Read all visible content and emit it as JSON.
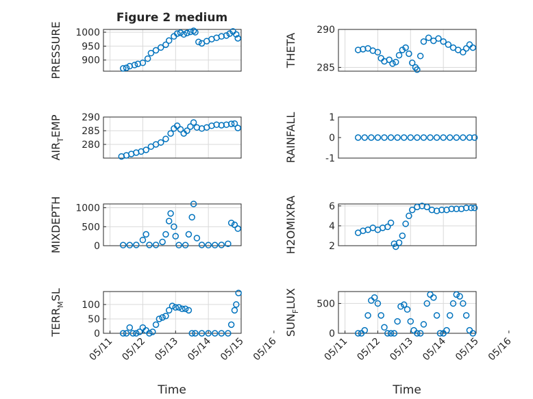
{
  "figure": {
    "title": "Figure 2 medium",
    "xlabel": "Time"
  },
  "colors": {
    "marker": "#0072BD",
    "grid": "#d9d9d9",
    "axes": "#262626"
  },
  "chart_data": [
    {
      "type": "scatter",
      "ylabel": "PRESSURE",
      "title": "Figure 2 medium",
      "ylim": [
        860,
        1010
      ],
      "yticks": [
        900,
        950,
        1000
      ],
      "grid": true,
      "x_range": [
        "05/11",
        "05/16"
      ],
      "xticks": [],
      "points": [
        [
          1.4,
          870
        ],
        [
          1.5,
          872
        ],
        [
          1.6,
          878
        ],
        [
          1.75,
          882
        ],
        [
          1.85,
          886
        ],
        [
          2.0,
          890
        ],
        [
          2.15,
          905
        ],
        [
          2.25,
          925
        ],
        [
          2.4,
          935
        ],
        [
          2.55,
          945
        ],
        [
          2.7,
          955
        ],
        [
          2.8,
          970
        ],
        [
          2.95,
          985
        ],
        [
          3.05,
          995
        ],
        [
          3.15,
          998
        ],
        [
          3.25,
          992
        ],
        [
          3.35,
          997
        ],
        [
          3.45,
          1001
        ],
        [
          3.55,
          1005
        ],
        [
          3.6,
          1000
        ],
        [
          3.7,
          965
        ],
        [
          3.8,
          960
        ],
        [
          3.95,
          968
        ],
        [
          4.1,
          975
        ],
        [
          4.25,
          980
        ],
        [
          4.4,
          985
        ],
        [
          4.55,
          988
        ],
        [
          4.65,
          995
        ],
        [
          4.75,
          1003
        ],
        [
          4.85,
          992
        ],
        [
          4.9,
          978
        ]
      ]
    },
    {
      "type": "scatter",
      "ylabel": "THETA",
      "ylim": [
        284.5,
        290
      ],
      "yticks": [
        285,
        290
      ],
      "grid": true,
      "x_range": [
        "05/11",
        "05/16"
      ],
      "xticks": [],
      "points": [
        [
          1.4,
          287.3
        ],
        [
          1.55,
          287.4
        ],
        [
          1.7,
          287.5
        ],
        [
          1.85,
          287.2
        ],
        [
          2.0,
          287.0
        ],
        [
          2.1,
          286.2
        ],
        [
          2.2,
          285.8
        ],
        [
          2.35,
          286.0
        ],
        [
          2.45,
          285.5
        ],
        [
          2.55,
          285.7
        ],
        [
          2.65,
          286.6
        ],
        [
          2.75,
          287.3
        ],
        [
          2.85,
          287.6
        ],
        [
          2.95,
          286.8
        ],
        [
          3.05,
          285.6
        ],
        [
          3.15,
          285.0
        ],
        [
          3.2,
          284.7
        ],
        [
          3.3,
          286.5
        ],
        [
          3.4,
          288.4
        ],
        [
          3.55,
          288.9
        ],
        [
          3.7,
          288.5
        ],
        [
          3.85,
          288.8
        ],
        [
          4.0,
          288.4
        ],
        [
          4.15,
          288.0
        ],
        [
          4.3,
          287.6
        ],
        [
          4.45,
          287.3
        ],
        [
          4.6,
          287.0
        ],
        [
          4.7,
          287.5
        ],
        [
          4.8,
          288.0
        ],
        [
          4.9,
          287.6
        ]
      ]
    },
    {
      "type": "scatter",
      "ylabel": "AIR_TEMP",
      "ylim": [
        275,
        290
      ],
      "yticks": [
        280,
        285,
        290
      ],
      "grid": true,
      "x_range": [
        "05/11",
        "05/16"
      ],
      "xticks": [],
      "points": [
        [
          1.35,
          275.6
        ],
        [
          1.5,
          276.0
        ],
        [
          1.65,
          276.5
        ],
        [
          1.8,
          277.0
        ],
        [
          1.95,
          277.4
        ],
        [
          2.1,
          278.0
        ],
        [
          2.25,
          279.2
        ],
        [
          2.4,
          280.0
        ],
        [
          2.55,
          280.7
        ],
        [
          2.7,
          282.0
        ],
        [
          2.85,
          284.0
        ],
        [
          2.95,
          285.8
        ],
        [
          3.05,
          286.8
        ],
        [
          3.15,
          285.5
        ],
        [
          3.25,
          284.0
        ],
        [
          3.35,
          285.0
        ],
        [
          3.45,
          286.5
        ],
        [
          3.55,
          288.0
        ],
        [
          3.65,
          286.2
        ],
        [
          3.8,
          285.8
        ],
        [
          3.95,
          286.2
        ],
        [
          4.1,
          286.8
        ],
        [
          4.25,
          287.2
        ],
        [
          4.4,
          287.0
        ],
        [
          4.55,
          287.2
        ],
        [
          4.7,
          287.5
        ],
        [
          4.8,
          287.6
        ],
        [
          4.9,
          286.0
        ]
      ]
    },
    {
      "type": "scatter",
      "ylabel": "RAINFALL",
      "ylim": [
        -1,
        1
      ],
      "yticks": [
        -1,
        0,
        1
      ],
      "grid": false,
      "x_range": [
        "05/11",
        "05/16"
      ],
      "xticks": [],
      "points": [
        [
          1.4,
          0
        ],
        [
          1.6,
          0
        ],
        [
          1.8,
          0
        ],
        [
          2.0,
          0
        ],
        [
          2.2,
          0
        ],
        [
          2.4,
          0
        ],
        [
          2.6,
          0
        ],
        [
          2.8,
          0
        ],
        [
          3.0,
          0
        ],
        [
          3.2,
          0
        ],
        [
          3.4,
          0
        ],
        [
          3.6,
          0
        ],
        [
          3.8,
          0
        ],
        [
          4.0,
          0
        ],
        [
          4.2,
          0
        ],
        [
          4.4,
          0
        ],
        [
          4.6,
          0
        ],
        [
          4.8,
          0
        ],
        [
          4.95,
          0
        ]
      ]
    },
    {
      "type": "scatter",
      "ylabel": "MIXDEPTH",
      "ylim": [
        0,
        1100
      ],
      "yticks": [
        0,
        500,
        1000
      ],
      "grid": true,
      "x_range": [
        "05/11",
        "05/16"
      ],
      "xticks": [],
      "points": [
        [
          1.4,
          15
        ],
        [
          1.6,
          15
        ],
        [
          1.8,
          20
        ],
        [
          2.0,
          150
        ],
        [
          2.1,
          300
        ],
        [
          2.2,
          20
        ],
        [
          2.4,
          20
        ],
        [
          2.6,
          100
        ],
        [
          2.7,
          300
        ],
        [
          2.8,
          650
        ],
        [
          2.85,
          850
        ],
        [
          2.95,
          500
        ],
        [
          3.0,
          250
        ],
        [
          3.1,
          15
        ],
        [
          3.3,
          15
        ],
        [
          3.4,
          300
        ],
        [
          3.5,
          750
        ],
        [
          3.55,
          1100
        ],
        [
          3.65,
          200
        ],
        [
          3.8,
          20
        ],
        [
          4.0,
          15
        ],
        [
          4.2,
          15
        ],
        [
          4.4,
          20
        ],
        [
          4.6,
          50
        ],
        [
          4.7,
          600
        ],
        [
          4.8,
          550
        ],
        [
          4.9,
          450
        ]
      ]
    },
    {
      "type": "scatter",
      "ylabel": "H2OMIXRA",
      "ylim": [
        2,
        6.2
      ],
      "yticks": [
        2,
        4,
        6
      ],
      "grid": true,
      "x_range": [
        "05/11",
        "05/16"
      ],
      "xticks": [],
      "points": [
        [
          1.4,
          3.3
        ],
        [
          1.55,
          3.5
        ],
        [
          1.7,
          3.6
        ],
        [
          1.85,
          3.8
        ],
        [
          2.0,
          3.6
        ],
        [
          2.15,
          3.8
        ],
        [
          2.3,
          3.9
        ],
        [
          2.4,
          4.3
        ],
        [
          2.5,
          2.2
        ],
        [
          2.55,
          1.9
        ],
        [
          2.65,
          2.3
        ],
        [
          2.75,
          3.0
        ],
        [
          2.85,
          4.2
        ],
        [
          2.95,
          5.0
        ],
        [
          3.05,
          5.6
        ],
        [
          3.2,
          5.9
        ],
        [
          3.35,
          6.0
        ],
        [
          3.5,
          5.9
        ],
        [
          3.65,
          5.6
        ],
        [
          3.8,
          5.5
        ],
        [
          3.95,
          5.6
        ],
        [
          4.1,
          5.6
        ],
        [
          4.25,
          5.7
        ],
        [
          4.4,
          5.7
        ],
        [
          4.55,
          5.7
        ],
        [
          4.7,
          5.8
        ],
        [
          4.85,
          5.8
        ],
        [
          4.95,
          5.8
        ]
      ]
    },
    {
      "type": "scatter",
      "ylabel": "TERR_MSL",
      "ylim": [
        0,
        145
      ],
      "yticks": [
        0,
        50,
        100
      ],
      "grid": true,
      "x_range": [
        "05/11",
        "05/16"
      ],
      "xticks": [
        "05/11",
        "05/12",
        "05/13",
        "05/14",
        "05/15",
        "05/16"
      ],
      "points": [
        [
          1.4,
          0
        ],
        [
          1.5,
          0
        ],
        [
          1.6,
          20
        ],
        [
          1.7,
          0
        ],
        [
          1.8,
          0
        ],
        [
          1.9,
          5
        ],
        [
          2.0,
          20
        ],
        [
          2.1,
          10
        ],
        [
          2.2,
          0
        ],
        [
          2.3,
          5
        ],
        [
          2.4,
          30
        ],
        [
          2.5,
          50
        ],
        [
          2.6,
          55
        ],
        [
          2.7,
          60
        ],
        [
          2.8,
          80
        ],
        [
          2.9,
          95
        ],
        [
          3.0,
          90
        ],
        [
          3.1,
          90
        ],
        [
          3.2,
          85
        ],
        [
          3.3,
          85
        ],
        [
          3.4,
          80
        ],
        [
          3.5,
          0
        ],
        [
          3.6,
          0
        ],
        [
          3.8,
          0
        ],
        [
          4.0,
          0
        ],
        [
          4.2,
          0
        ],
        [
          4.4,
          0
        ],
        [
          4.6,
          0
        ],
        [
          4.7,
          30
        ],
        [
          4.8,
          80
        ],
        [
          4.85,
          100
        ],
        [
          4.92,
          140
        ]
      ]
    },
    {
      "type": "scatter",
      "ylabel": "SUN_FLUX",
      "ylim": [
        0,
        700
      ],
      "yticks": [
        0,
        500
      ],
      "grid": true,
      "x_range": [
        "05/11",
        "05/16"
      ],
      "xticks": [
        "05/11",
        "05/12",
        "05/13",
        "05/14",
        "05/15",
        "05/16"
      ],
      "points": [
        [
          1.4,
          0
        ],
        [
          1.5,
          0
        ],
        [
          1.6,
          50
        ],
        [
          1.7,
          300
        ],
        [
          1.8,
          550
        ],
        [
          1.9,
          600
        ],
        [
          2.0,
          500
        ],
        [
          2.1,
          300
        ],
        [
          2.2,
          100
        ],
        [
          2.3,
          0
        ],
        [
          2.4,
          0
        ],
        [
          2.5,
          0
        ],
        [
          2.6,
          200
        ],
        [
          2.7,
          450
        ],
        [
          2.8,
          480
        ],
        [
          2.9,
          400
        ],
        [
          3.0,
          200
        ],
        [
          3.1,
          50
        ],
        [
          3.2,
          0
        ],
        [
          3.3,
          0
        ],
        [
          3.4,
          150
        ],
        [
          3.5,
          500
        ],
        [
          3.6,
          650
        ],
        [
          3.7,
          600
        ],
        [
          3.8,
          300
        ],
        [
          3.9,
          0
        ],
        [
          4.0,
          0
        ],
        [
          4.1,
          50
        ],
        [
          4.2,
          300
        ],
        [
          4.3,
          500
        ],
        [
          4.4,
          650
        ],
        [
          4.5,
          620
        ],
        [
          4.6,
          500
        ],
        [
          4.7,
          300
        ],
        [
          4.8,
          50
        ],
        [
          4.9,
          0
        ]
      ]
    }
  ]
}
